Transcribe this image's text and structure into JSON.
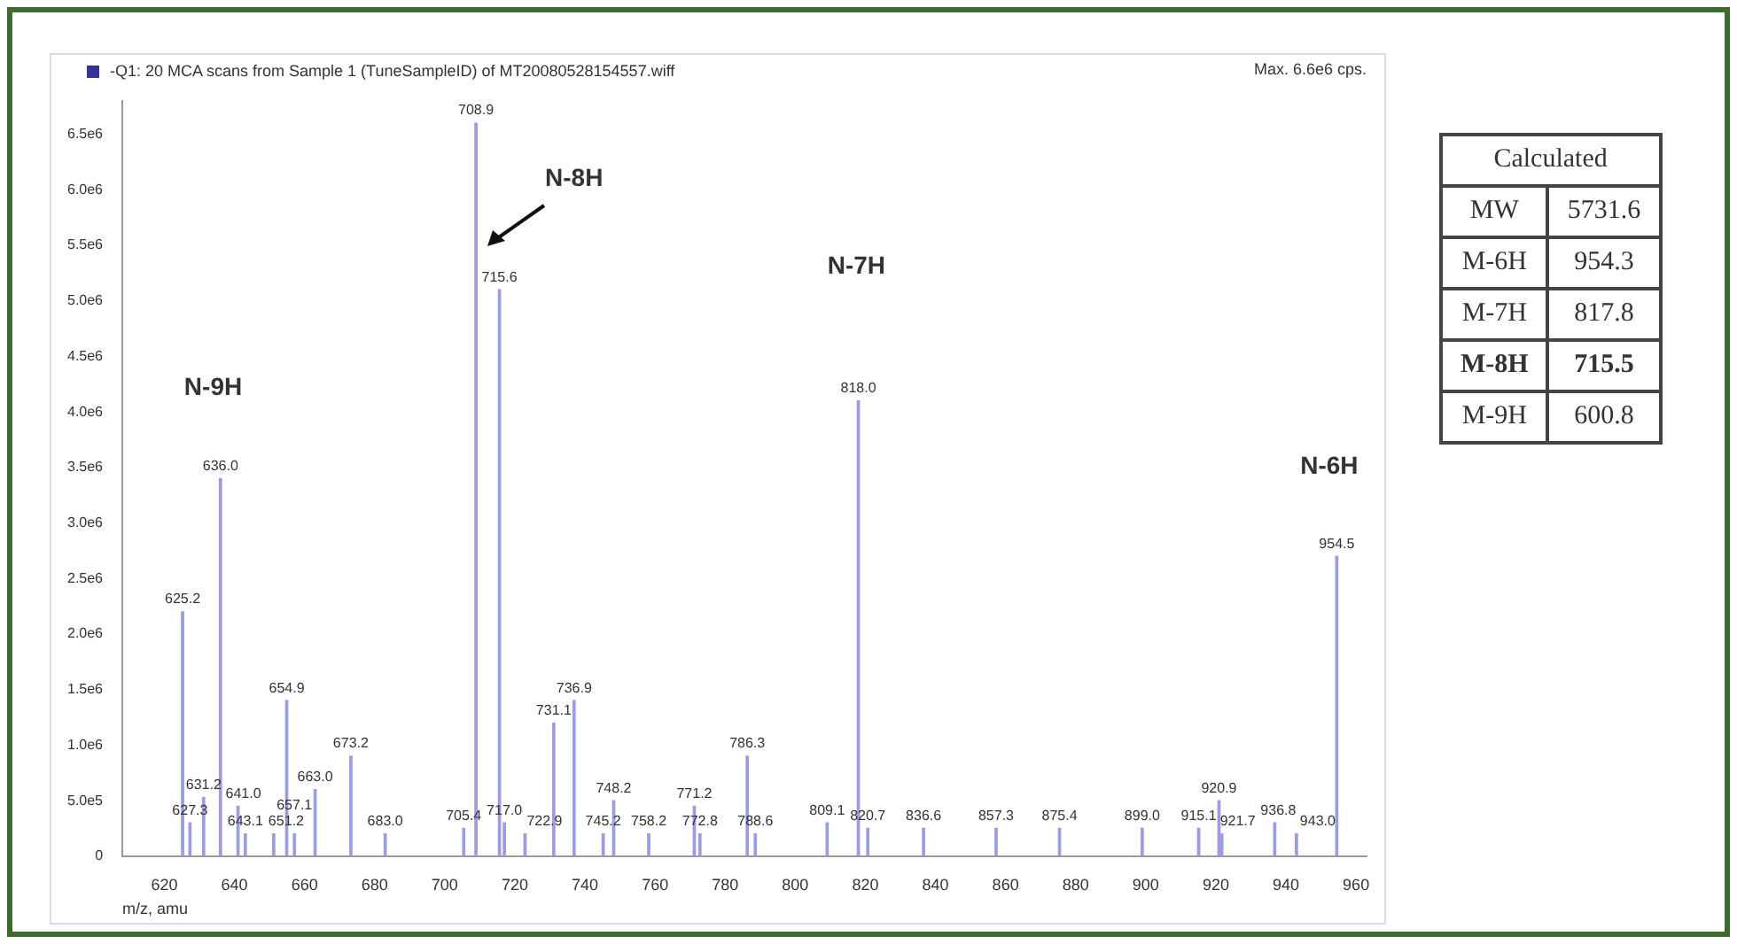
{
  "chart_data": [
    {
      "type": "bar",
      "title": "-Q1: 20 MCA scans from Sample 1 (TuneSampleID) of MT20080528154557.wiff",
      "xlabel": "m/z, amu",
      "x": [
        625.2,
        627.3,
        631.2,
        636.0,
        641.0,
        643.1,
        651.2,
        654.9,
        657.1,
        663.0,
        673.2,
        683.0,
        705.4,
        708.9,
        715.6,
        717.0,
        722.9,
        731.1,
        736.9,
        745.2,
        748.2,
        758.2,
        771.2,
        772.8,
        786.3,
        788.6,
        809.1,
        818.0,
        820.7,
        836.6,
        857.3,
        875.4,
        899.0,
        915.1,
        920.9,
        921.7,
        936.8,
        943.0,
        954.5
      ],
      "values": [
        2200000,
        300000,
        530000,
        3400000,
        450000,
        200000,
        200000,
        1400000,
        200000,
        600000,
        900000,
        200000,
        250000,
        6600000,
        5100000,
        300000,
        200000,
        1200000,
        1400000,
        200000,
        500000,
        200000,
        450000,
        200000,
        900000,
        200000,
        300000,
        4100000,
        250000,
        250000,
        250000,
        250000,
        250000,
        250000,
        500000,
        200000,
        300000,
        200000,
        2700000
      ],
      "color": "#9c9ce0",
      "xlim": [
        608,
        963
      ],
      "xticks": [
        620,
        640,
        660,
        680,
        700,
        720,
        740,
        760,
        780,
        800,
        820,
        840,
        860,
        880,
        900,
        920,
        940,
        960
      ],
      "ylim": [
        0,
        6800000
      ],
      "yticks": [
        {
          "value": 0,
          "label": "0"
        },
        {
          "value": 500000,
          "label": "5.0e5"
        },
        {
          "value": 1000000,
          "label": "1.0e6"
        },
        {
          "value": 1500000,
          "label": "1.5e6"
        },
        {
          "value": 2000000,
          "label": "2.0e6"
        },
        {
          "value": 2500000,
          "label": "2.5e6"
        },
        {
          "value": 3000000,
          "label": "3.0e6"
        },
        {
          "value": 3500000,
          "label": "3.5e6"
        },
        {
          "value": 4000000,
          "label": "4.0e6"
        },
        {
          "value": 4500000,
          "label": "4.5e6"
        },
        {
          "value": 5000000,
          "label": "5.0e6"
        },
        {
          "value": 5500000,
          "label": "5.5e6"
        },
        {
          "value": 6000000,
          "label": "6.0e6"
        },
        {
          "value": 6500000,
          "label": "6.5e6"
        }
      ],
      "grid": false,
      "legend": false,
      "annotations": [
        "Max. 6.6e6 cps.",
        "N-9H",
        "N-8H",
        "N-7H",
        "N-6H",
        {
          "text": "625.2",
          "x": 625.2,
          "y": 2200000
        },
        {
          "text": "627.3",
          "x": 627.3,
          "y": 300000
        },
        {
          "text": "631.2",
          "x": 631.2,
          "y": 530000
        },
        {
          "text": "636.0",
          "x": 636.0,
          "y": 3400000
        },
        {
          "text": "641.0",
          "x": 641.0,
          "y": 450000
        },
        {
          "text": "643.1",
          "x": 643.1,
          "y": 200000
        },
        {
          "text": "651.2",
          "x": 651.2,
          "y": 200000
        },
        {
          "text": "654.9",
          "x": 654.9,
          "y": 1400000
        },
        {
          "text": "657.1",
          "x": 657.1,
          "y": 200000
        },
        {
          "text": "663.0",
          "x": 663.0,
          "y": 600000
        },
        {
          "text": "673.2",
          "x": 673.2,
          "y": 900000
        },
        {
          "text": "683.0",
          "x": 683.0,
          "y": 200000
        },
        {
          "text": "705.4",
          "x": 705.4,
          "y": 250000
        },
        {
          "text": "708.9",
          "x": 708.9,
          "y": 6600000
        },
        {
          "text": "715.6",
          "x": 715.6,
          "y": 5100000
        },
        {
          "text": "717.0",
          "x": 717.0,
          "y": 300000
        },
        {
          "text": "722.9",
          "x": 722.9,
          "y": 200000
        },
        {
          "text": "731.1",
          "x": 731.1,
          "y": 1200000
        },
        {
          "text": "736.9",
          "x": 736.9,
          "y": 1400000
        },
        {
          "text": "745.2",
          "x": 745.2,
          "y": 200000
        },
        {
          "text": "748.2",
          "x": 748.2,
          "y": 500000
        },
        {
          "text": "758.2",
          "x": 758.2,
          "y": 200000
        },
        {
          "text": "771.2",
          "x": 771.2,
          "y": 450000
        },
        {
          "text": "772.8",
          "x": 772.8,
          "y": 200000
        },
        {
          "text": "786.3",
          "x": 786.3,
          "y": 900000
        },
        {
          "text": "788.6",
          "x": 788.6,
          "y": 200000
        },
        {
          "text": "809.1",
          "x": 809.1,
          "y": 300000
        },
        {
          "text": "818.0",
          "x": 818.0,
          "y": 4100000
        },
        {
          "text": "820.7",
          "x": 820.7,
          "y": 250000
        },
        {
          "text": "836.6",
          "x": 836.6,
          "y": 250000
        },
        {
          "text": "857.3",
          "x": 857.3,
          "y": 250000
        },
        {
          "text": "875.4",
          "x": 875.4,
          "y": 250000
        },
        {
          "text": "899.0",
          "x": 899.0,
          "y": 250000
        },
        {
          "text": "915.1",
          "x": 915.1,
          "y": 250000
        },
        {
          "text": "920.9",
          "x": 920.9,
          "y": 500000
        },
        {
          "text": "921.7",
          "x": 921.7,
          "y": 200000
        },
        {
          "text": "936.8",
          "x": 936.8,
          "y": 300000
        },
        {
          "text": "943.0",
          "x": 943.0,
          "y": 200000
        },
        {
          "text": "954.5",
          "x": 954.5,
          "y": 2700000
        }
      ]
    },
    {
      "type": "other",
      "title": "Calculated",
      "categories": [
        "MW",
        "M-6H",
        "M-7H",
        "M-8H",
        "M-9H"
      ],
      "values": [
        5731.6,
        954.3,
        817.8,
        715.5,
        600.8
      ],
      "data_labels": true
    }
  ]
}
